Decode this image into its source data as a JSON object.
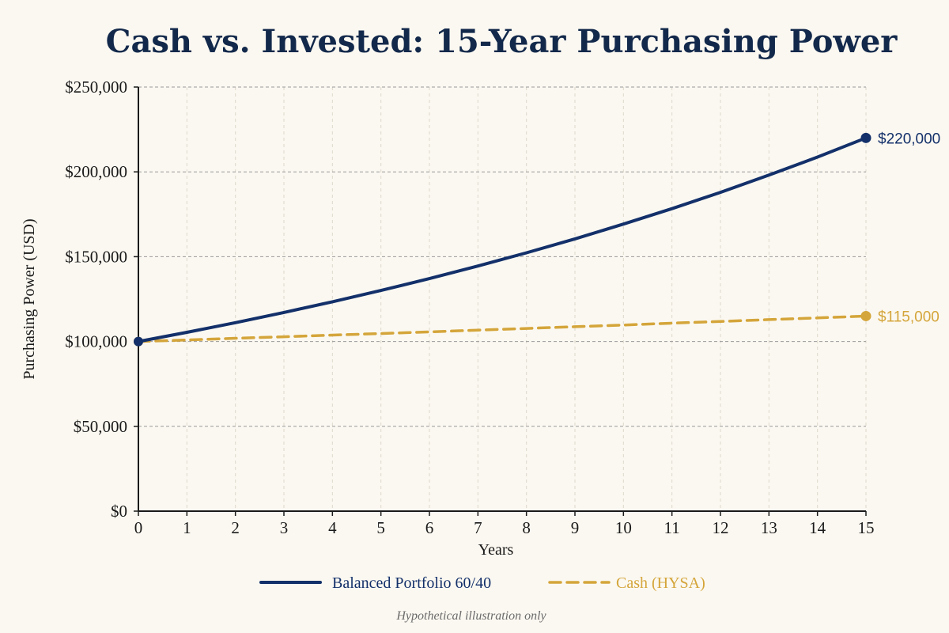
{
  "chart_data": {
    "type": "line",
    "title": "Cash vs. Invested: 15-Year Purchasing Power",
    "xlabel": "Years",
    "ylabel": "Purchasing Power (USD)",
    "x": [
      0,
      1,
      2,
      3,
      4,
      5,
      6,
      7,
      8,
      9,
      10,
      11,
      12,
      13,
      14,
      15
    ],
    "xlim": [
      0,
      15
    ],
    "ylim": [
      0,
      250000
    ],
    "y_ticks": [
      0,
      50000,
      100000,
      150000,
      200000,
      250000
    ],
    "y_tick_labels": [
      "$0",
      "$50,000",
      "$100,000",
      "$150,000",
      "$200,000",
      "$250,000"
    ],
    "x_tick_labels": [
      "0",
      "1",
      "2",
      "3",
      "4",
      "5",
      "6",
      "7",
      "8",
      "9",
      "10",
      "11",
      "12",
      "13",
      "14",
      "15"
    ],
    "grid": true,
    "legend_position": "bottom-center",
    "series": [
      {
        "name": "Balanced Portfolio 60/40",
        "color": "#13306A",
        "style": "solid",
        "values": [
          100000,
          105400,
          111100,
          117100,
          123400,
          130100,
          137100,
          144500,
          152300,
          160500,
          169200,
          178300,
          187900,
          198100,
          208700,
          220000
        ],
        "end_label": "$220,000"
      },
      {
        "name": "Cash (HYSA)",
        "color": "#D4A53A",
        "style": "dashed",
        "values": [
          100000,
          100900,
          101900,
          102800,
          103800,
          104700,
          105700,
          106700,
          107700,
          108700,
          109700,
          110800,
          111800,
          112900,
          113900,
          115000
        ],
        "end_label": "$115,000"
      }
    ],
    "footnote": "Hypothetical illustration only"
  }
}
